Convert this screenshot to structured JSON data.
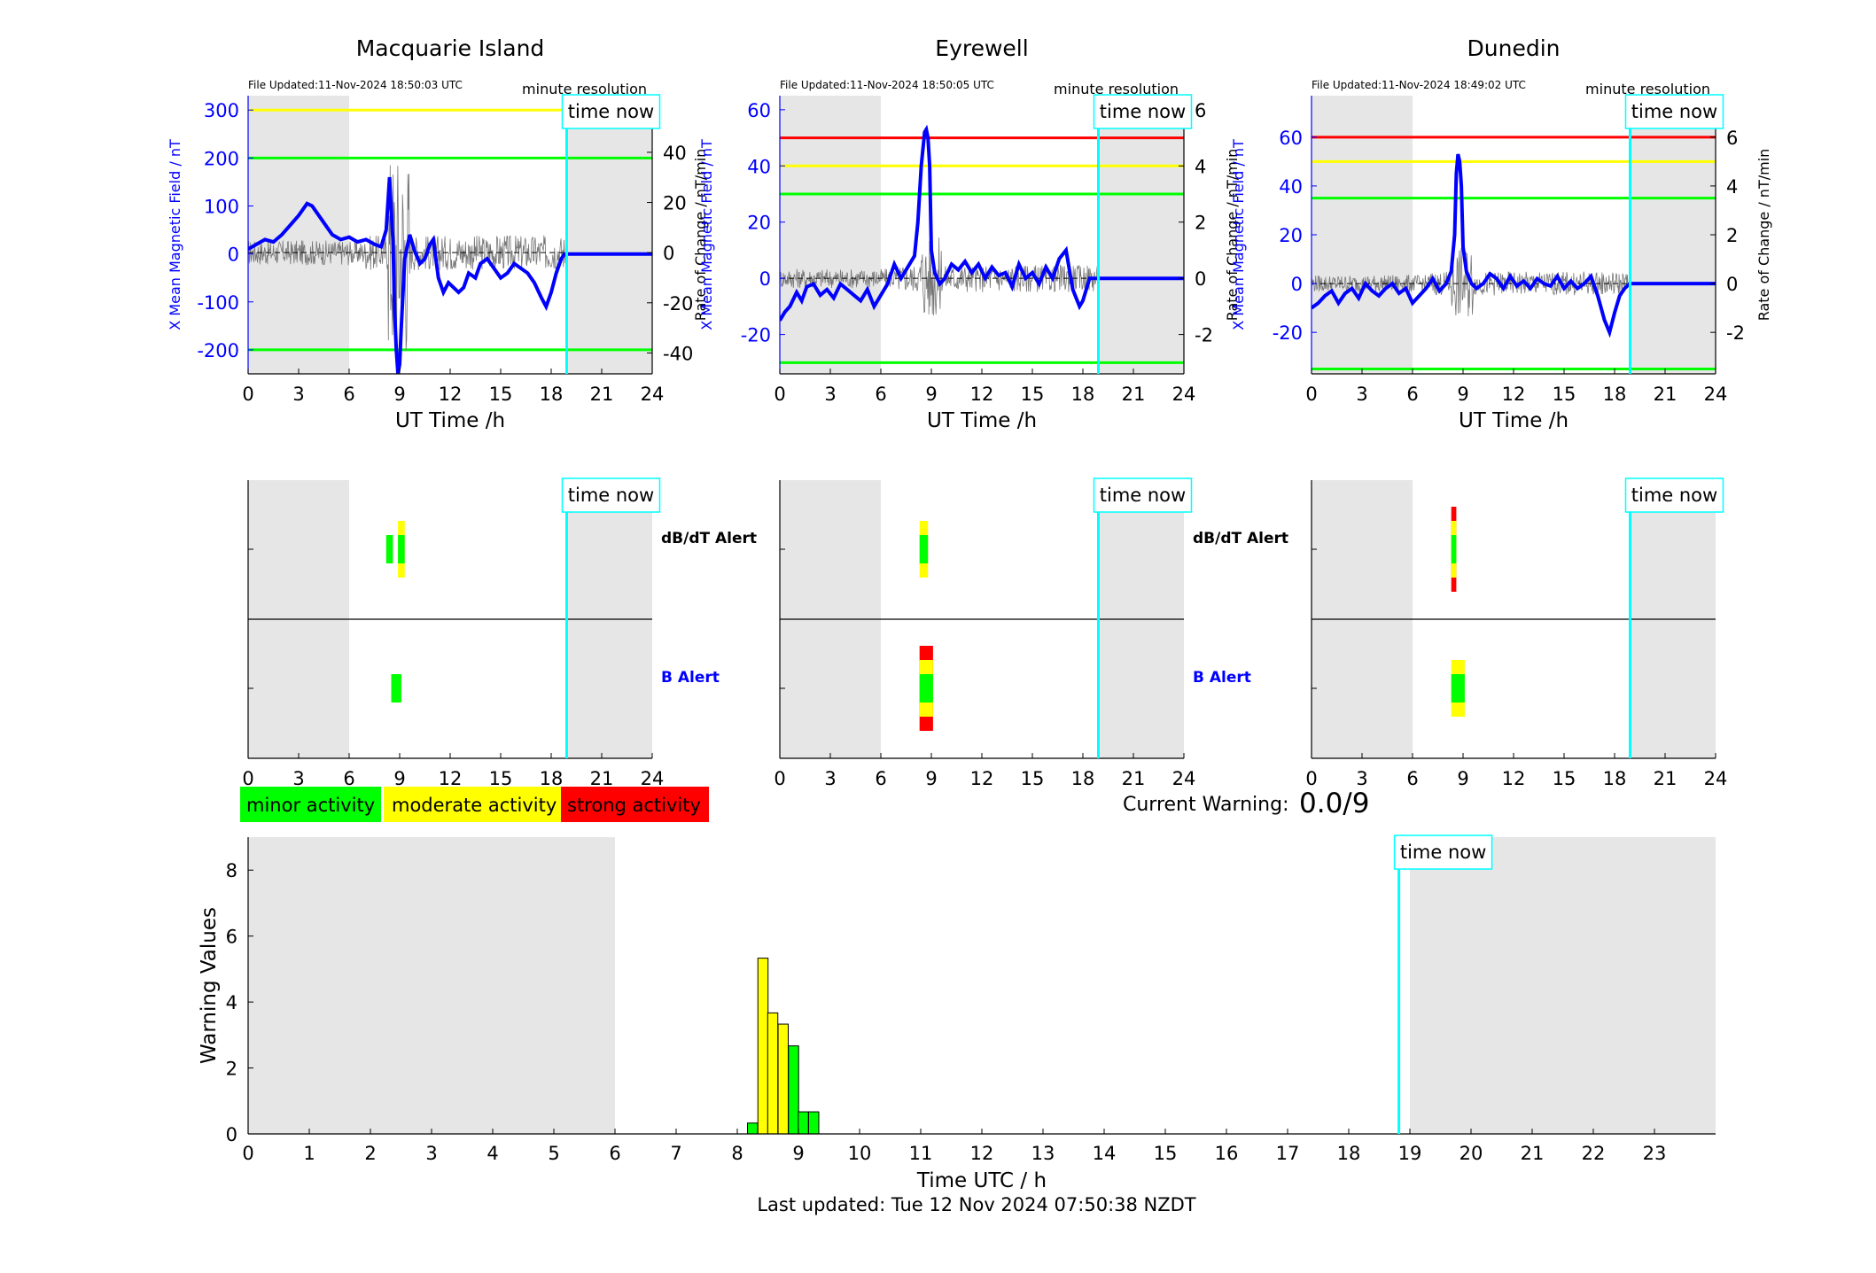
{
  "stations": [
    {
      "name": "Macquarie Island",
      "file_updated": "File Updated:11-Nov-2024 18:50:03 UTC",
      "resolution": "minute resolution",
      "x_label": "UT Time /h",
      "y_left_label": "X Mean Magnetic Field / nT",
      "y_right_label": "Rate of Change / nT/min",
      "time_now_label": "time now",
      "x_ticks": [
        "0",
        "3",
        "6",
        "9",
        "12",
        "15",
        "18",
        "21",
        "24"
      ],
      "y_left_ticks": [
        300,
        200,
        100,
        0,
        -100,
        -200
      ],
      "y_right_ticks": [
        40,
        20,
        0,
        -20,
        -40
      ],
      "alert_labels": [
        "dB/dT Alert",
        "B Alert"
      ]
    },
    {
      "name": "Eyrewell",
      "file_updated": "File Updated:11-Nov-2024 18:50:05 UTC",
      "resolution": "minute resolution",
      "x_label": "UT Time /h",
      "y_left_label": "X Mean Magnetic Field / nT",
      "y_right_label": "Rate of Change / nT/min",
      "time_now_label": "time now",
      "x_ticks": [
        "0",
        "3",
        "6",
        "9",
        "12",
        "15",
        "18",
        "21",
        "24"
      ],
      "y_left_ticks": [
        60,
        40,
        20,
        0,
        -20
      ],
      "y_right_ticks": [
        6,
        4,
        2,
        0,
        -2
      ],
      "alert_labels": [
        "dB/dT Alert",
        "B Alert"
      ]
    },
    {
      "name": "Dunedin",
      "file_updated": "File Updated:11-Nov-2024 18:49:02 UTC",
      "resolution": "minute resolution",
      "x_label": "UT Time /h",
      "y_left_label": "X Mean Magnetic Field / nT",
      "y_right_label": "Rate of Change / nT/min",
      "time_now_label": "time now",
      "x_ticks": [
        "0",
        "3",
        "6",
        "9",
        "12",
        "15",
        "18",
        "21",
        "24"
      ],
      "y_left_ticks": [
        60,
        40,
        20,
        0,
        -20
      ],
      "y_right_ticks": [
        6,
        4,
        2,
        0,
        -2
      ],
      "alert_labels": [
        "",
        ""
      ]
    }
  ],
  "legend": {
    "minor": "minor activity",
    "moderate": "moderate activity",
    "strong": "strong activity",
    "minor_color": "#00ff00",
    "moderate_color": "#ffff00",
    "strong_color": "#ff0000"
  },
  "current_warning": {
    "label": "Current Warning:",
    "value": "0.0/9"
  },
  "bottom": {
    "ylabel": "Warning Values",
    "xlabel": "Time UTC / h",
    "time_now_label": "time now",
    "y_ticks": [
      "0",
      "2",
      "4",
      "6",
      "8"
    ],
    "x_ticks": [
      "0",
      "1",
      "2",
      "3",
      "4",
      "5",
      "6",
      "7",
      "8",
      "9",
      "10",
      "11",
      "12",
      "13",
      "14",
      "15",
      "16",
      "17",
      "18",
      "19",
      "20",
      "21",
      "22",
      "23"
    ],
    "last_updated": "Last updated: Tue 12 Nov 2024 07:50:38 NZDT"
  },
  "chart_data": [
    {
      "type": "line",
      "title": "Macquarie Island",
      "xlabel": "UT Time /h",
      "ylabel": "X Mean Magnetic Field / nT",
      "xlim": [
        0,
        24
      ],
      "ylim_left": [
        -250,
        330
      ],
      "ylim_right": [
        -48.33,
        62.58
      ],
      "thresholds": [
        {
          "value": 300,
          "color": "#ffff00"
        },
        {
          "value": 200,
          "color": "#00ff00"
        },
        {
          "value": -200,
          "color": "#00ff00"
        }
      ],
      "night_shading": [
        [
          0,
          6
        ],
        [
          18.92,
          24
        ]
      ],
      "time_now": 18.92,
      "series": [
        {
          "color": "#0000ff",
          "x": [
            0,
            0.5,
            1,
            1.5,
            2,
            2.5,
            3,
            3.5,
            3.8,
            4.2,
            4.6,
            5,
            5.5,
            6,
            6.5,
            7,
            7.5,
            7.9,
            8.2,
            8.4,
            8.5,
            8.6,
            8.7,
            8.8,
            8.9,
            9,
            9.1,
            9.3,
            9.6,
            9.9,
            10.2,
            10.5,
            10.8,
            11,
            11.3,
            11.6,
            11.9,
            12.2,
            12.5,
            12.8,
            13.1,
            13.5,
            13.8,
            14.2,
            14.6,
            15,
            15.4,
            15.8,
            16.2,
            16.6,
            17,
            17.4,
            17.7,
            18,
            18.3,
            18.6,
            18.8,
            19,
            20,
            22,
            24
          ],
          "y": [
            10,
            20,
            30,
            25,
            40,
            60,
            80,
            105,
            100,
            80,
            60,
            40,
            30,
            35,
            25,
            30,
            20,
            15,
            50,
            160,
            90,
            30,
            -120,
            -200,
            -250,
            -230,
            -150,
            -10,
            40,
            5,
            -20,
            -10,
            20,
            30,
            -50,
            -80,
            -60,
            -70,
            -80,
            -70,
            -40,
            -50,
            -20,
            -10,
            -30,
            -50,
            -40,
            -20,
            -30,
            -40,
            -60,
            -90,
            -110,
            -80,
            -40,
            -10,
            0,
            0,
            0,
            0,
            0
          ]
        }
      ],
      "alerts": {
        "dbdt": [
          {
            "start": 8.2,
            "end": 8.6,
            "level": "minor"
          },
          {
            "start": 8.9,
            "end": 9.3,
            "level": "moderate"
          },
          {
            "start": 8.9,
            "end": 9.3,
            "level": "minor"
          }
        ],
        "b": [
          {
            "start": 8.5,
            "end": 9.1,
            "level": "minor"
          }
        ]
      }
    },
    {
      "type": "line",
      "title": "Eyrewell",
      "xlabel": "UT Time /h",
      "ylabel": "X Mean Magnetic Field / nT",
      "xlim": [
        0,
        24
      ],
      "ylim_left": [
        -34,
        65
      ],
      "ylim_right": [
        -3.4,
        6.5
      ],
      "thresholds": [
        {
          "value": 50,
          "color": "#ff0000"
        },
        {
          "value": 40,
          "color": "#ffff00"
        },
        {
          "value": 30,
          "color": "#00ff00"
        },
        {
          "value": -30,
          "color": "#00ff00"
        }
      ],
      "night_shading": [
        [
          0,
          6
        ],
        [
          18.92,
          24
        ]
      ],
      "time_now": 18.92,
      "series": [
        {
          "color": "#0000ff",
          "x": [
            0,
            0.3,
            0.6,
            1,
            1.3,
            1.6,
            2,
            2.4,
            2.8,
            3.2,
            3.6,
            4,
            4.4,
            4.8,
            5.2,
            5.6,
            6,
            6.4,
            6.8,
            7.2,
            7.6,
            8,
            8.2,
            8.4,
            8.6,
            8.7,
            8.8,
            8.9,
            9,
            9.2,
            9.5,
            9.8,
            10.2,
            10.6,
            11,
            11.4,
            11.8,
            12.2,
            12.6,
            13,
            13.4,
            13.8,
            14.2,
            14.6,
            15,
            15.4,
            15.8,
            16.2,
            16.6,
            17,
            17.4,
            17.8,
            18,
            18.4,
            18.8,
            20,
            22,
            24
          ],
          "y": [
            -15,
            -12,
            -10,
            -5,
            -8,
            -3,
            -2,
            -6,
            -4,
            -7,
            -2,
            -4,
            -6,
            -8,
            -4,
            -10,
            -6,
            -2,
            5,
            0,
            4,
            8,
            20,
            40,
            52,
            53,
            50,
            40,
            10,
            2,
            -2,
            0,
            5,
            3,
            6,
            2,
            5,
            0,
            4,
            1,
            2,
            -3,
            5,
            0,
            2,
            -2,
            4,
            0,
            7,
            10,
            -4,
            -10,
            -8,
            0,
            0,
            0,
            0,
            0
          ]
        }
      ],
      "alerts": {
        "dbdt": [
          {
            "start": 8.3,
            "end": 8.8,
            "level": "moderate"
          },
          {
            "start": 8.3,
            "end": 8.8,
            "level": "minor"
          }
        ],
        "b": [
          {
            "start": 8.3,
            "end": 9.1,
            "level": "strong"
          },
          {
            "start": 8.3,
            "end": 9.1,
            "level": "moderate"
          },
          {
            "start": 8.3,
            "end": 9.1,
            "level": "minor"
          }
        ]
      }
    },
    {
      "type": "line",
      "title": "Dunedin",
      "xlabel": "UT Time /h",
      "ylabel": "X Mean Magnetic Field / nT",
      "xlim": [
        0,
        24
      ],
      "ylim_left": [
        -37,
        77
      ],
      "ylim_right": [
        -3.7,
        7.7
      ],
      "thresholds": [
        {
          "value": 60,
          "color": "#ff0000"
        },
        {
          "value": 50,
          "color": "#ffff00"
        },
        {
          "value": 35,
          "color": "#00ff00"
        },
        {
          "value": -35,
          "color": "#00ff00"
        }
      ],
      "night_shading": [
        [
          0,
          6
        ],
        [
          18.92,
          24
        ]
      ],
      "time_now": 18.92,
      "series": [
        {
          "color": "#0000ff",
          "x": [
            0,
            0.4,
            0.8,
            1.2,
            1.6,
            2,
            2.4,
            2.8,
            3.2,
            3.6,
            4,
            4.4,
            4.8,
            5.2,
            5.6,
            6,
            6.4,
            6.8,
            7.2,
            7.6,
            8,
            8.3,
            8.5,
            8.6,
            8.7,
            8.8,
            8.9,
            9,
            9.2,
            9.5,
            9.8,
            10.2,
            10.6,
            11,
            11.4,
            11.8,
            12.2,
            12.6,
            13,
            13.4,
            13.8,
            14.2,
            14.6,
            15,
            15.4,
            15.8,
            16.2,
            16.6,
            17,
            17.4,
            17.7,
            18,
            18.3,
            18.6,
            18.9,
            20,
            22,
            24
          ],
          "y": [
            -10,
            -8,
            -5,
            -3,
            -8,
            -4,
            -2,
            -6,
            0,
            -3,
            -5,
            -2,
            0,
            -4,
            -2,
            -8,
            -5,
            -2,
            2,
            -3,
            0,
            5,
            20,
            45,
            53,
            50,
            40,
            15,
            5,
            0,
            -2,
            0,
            4,
            2,
            -2,
            3,
            -1,
            1,
            -2,
            2,
            0,
            -1,
            3,
            -2,
            1,
            -2,
            0,
            3,
            -5,
            -15,
            -20,
            -12,
            -5,
            -2,
            0,
            0,
            0,
            0
          ]
        }
      ],
      "alerts": {
        "dbdt": [
          {
            "start": 8.3,
            "end": 8.6,
            "level": "strong"
          },
          {
            "start": 8.3,
            "end": 8.6,
            "level": "moderate"
          },
          {
            "start": 8.3,
            "end": 8.6,
            "level": "minor"
          }
        ],
        "b": [
          {
            "start": 8.3,
            "end": 9.1,
            "level": "moderate"
          },
          {
            "start": 8.3,
            "end": 9.1,
            "level": "minor"
          }
        ]
      }
    },
    {
      "type": "bar",
      "title": "",
      "xlabel": "Time UTC / h",
      "ylabel": "Warning Values",
      "xlim": [
        0,
        24
      ],
      "ylim": [
        0,
        9
      ],
      "night_shading": [
        [
          0,
          6
        ],
        [
          19,
          24
        ]
      ],
      "time_now": 18.82,
      "bars": [
        {
          "x": 8.25,
          "value": 0.33,
          "color": "#00ff00"
        },
        {
          "x": 8.42,
          "value": 5.33,
          "color": "#ffff00"
        },
        {
          "x": 8.58,
          "value": 3.67,
          "color": "#ffff00"
        },
        {
          "x": 8.75,
          "value": 3.33,
          "color": "#ffff00"
        },
        {
          "x": 8.92,
          "value": 2.67,
          "color": "#00ff00"
        },
        {
          "x": 9.08,
          "value": 0.67,
          "color": "#00ff00"
        },
        {
          "x": 9.25,
          "value": 0.67,
          "color": "#00ff00"
        }
      ]
    }
  ]
}
